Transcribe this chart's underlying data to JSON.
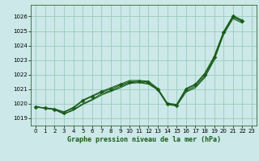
{
  "title": "Graphe pression niveau de la mer (hPa)",
  "bg_color": "#cce8e8",
  "grid_color": "#99ccbb",
  "line_color": "#1a5c1a",
  "marker_color": "#1a5c1a",
  "xlim": [
    -0.5,
    23.5
  ],
  "ylim": [
    1018.5,
    1026.8
  ],
  "yticks": [
    1019,
    1020,
    1021,
    1022,
    1023,
    1024,
    1025,
    1026
  ],
  "xticks": [
    0,
    1,
    2,
    3,
    4,
    5,
    6,
    7,
    8,
    9,
    10,
    11,
    12,
    13,
    14,
    15,
    16,
    17,
    18,
    19,
    20,
    21,
    22,
    23
  ],
  "series": [
    [
      1019.8,
      1019.7,
      1019.6,
      1019.4,
      1019.7,
      1020.2,
      1020.5,
      1020.8,
      1021.0,
      1021.3,
      1021.5,
      1021.55,
      1021.5,
      1021.0,
      1020.0,
      1019.9,
      1021.0,
      1021.3,
      1022.0,
      1023.2,
      1024.9,
      1026.0,
      1025.7,
      null
    ],
    [
      1019.75,
      1019.72,
      1019.65,
      1019.45,
      1019.75,
      1020.25,
      1020.55,
      1020.85,
      1021.1,
      1021.35,
      1021.6,
      1021.6,
      1021.55,
      1021.05,
      1020.05,
      1019.95,
      1021.05,
      1021.35,
      1022.1,
      1023.25,
      1024.95,
      1026.05,
      1025.75,
      null
    ],
    [
      1019.8,
      1019.7,
      1019.6,
      1019.3,
      1019.6,
      1020.0,
      1020.3,
      1020.7,
      1020.9,
      1021.2,
      1021.45,
      1021.5,
      1021.4,
      1021.0,
      1020.0,
      1019.9,
      1020.9,
      1021.2,
      1021.9,
      1023.1,
      1024.85,
      1025.95,
      1025.65,
      null
    ],
    [
      1019.8,
      1019.7,
      1019.6,
      1019.3,
      1019.55,
      1019.95,
      1020.25,
      1020.6,
      1020.85,
      1021.1,
      1021.4,
      1021.45,
      1021.35,
      1020.95,
      1019.95,
      1019.85,
      1020.8,
      1021.1,
      1021.8,
      1023.0,
      1024.75,
      1025.85,
      1025.55,
      null
    ]
  ],
  "has_markers": [
    true,
    false,
    false,
    false
  ],
  "marker_style": "D",
  "marker_size": 2.5,
  "title_fontsize": 6.0,
  "tick_fontsize": 5.0
}
